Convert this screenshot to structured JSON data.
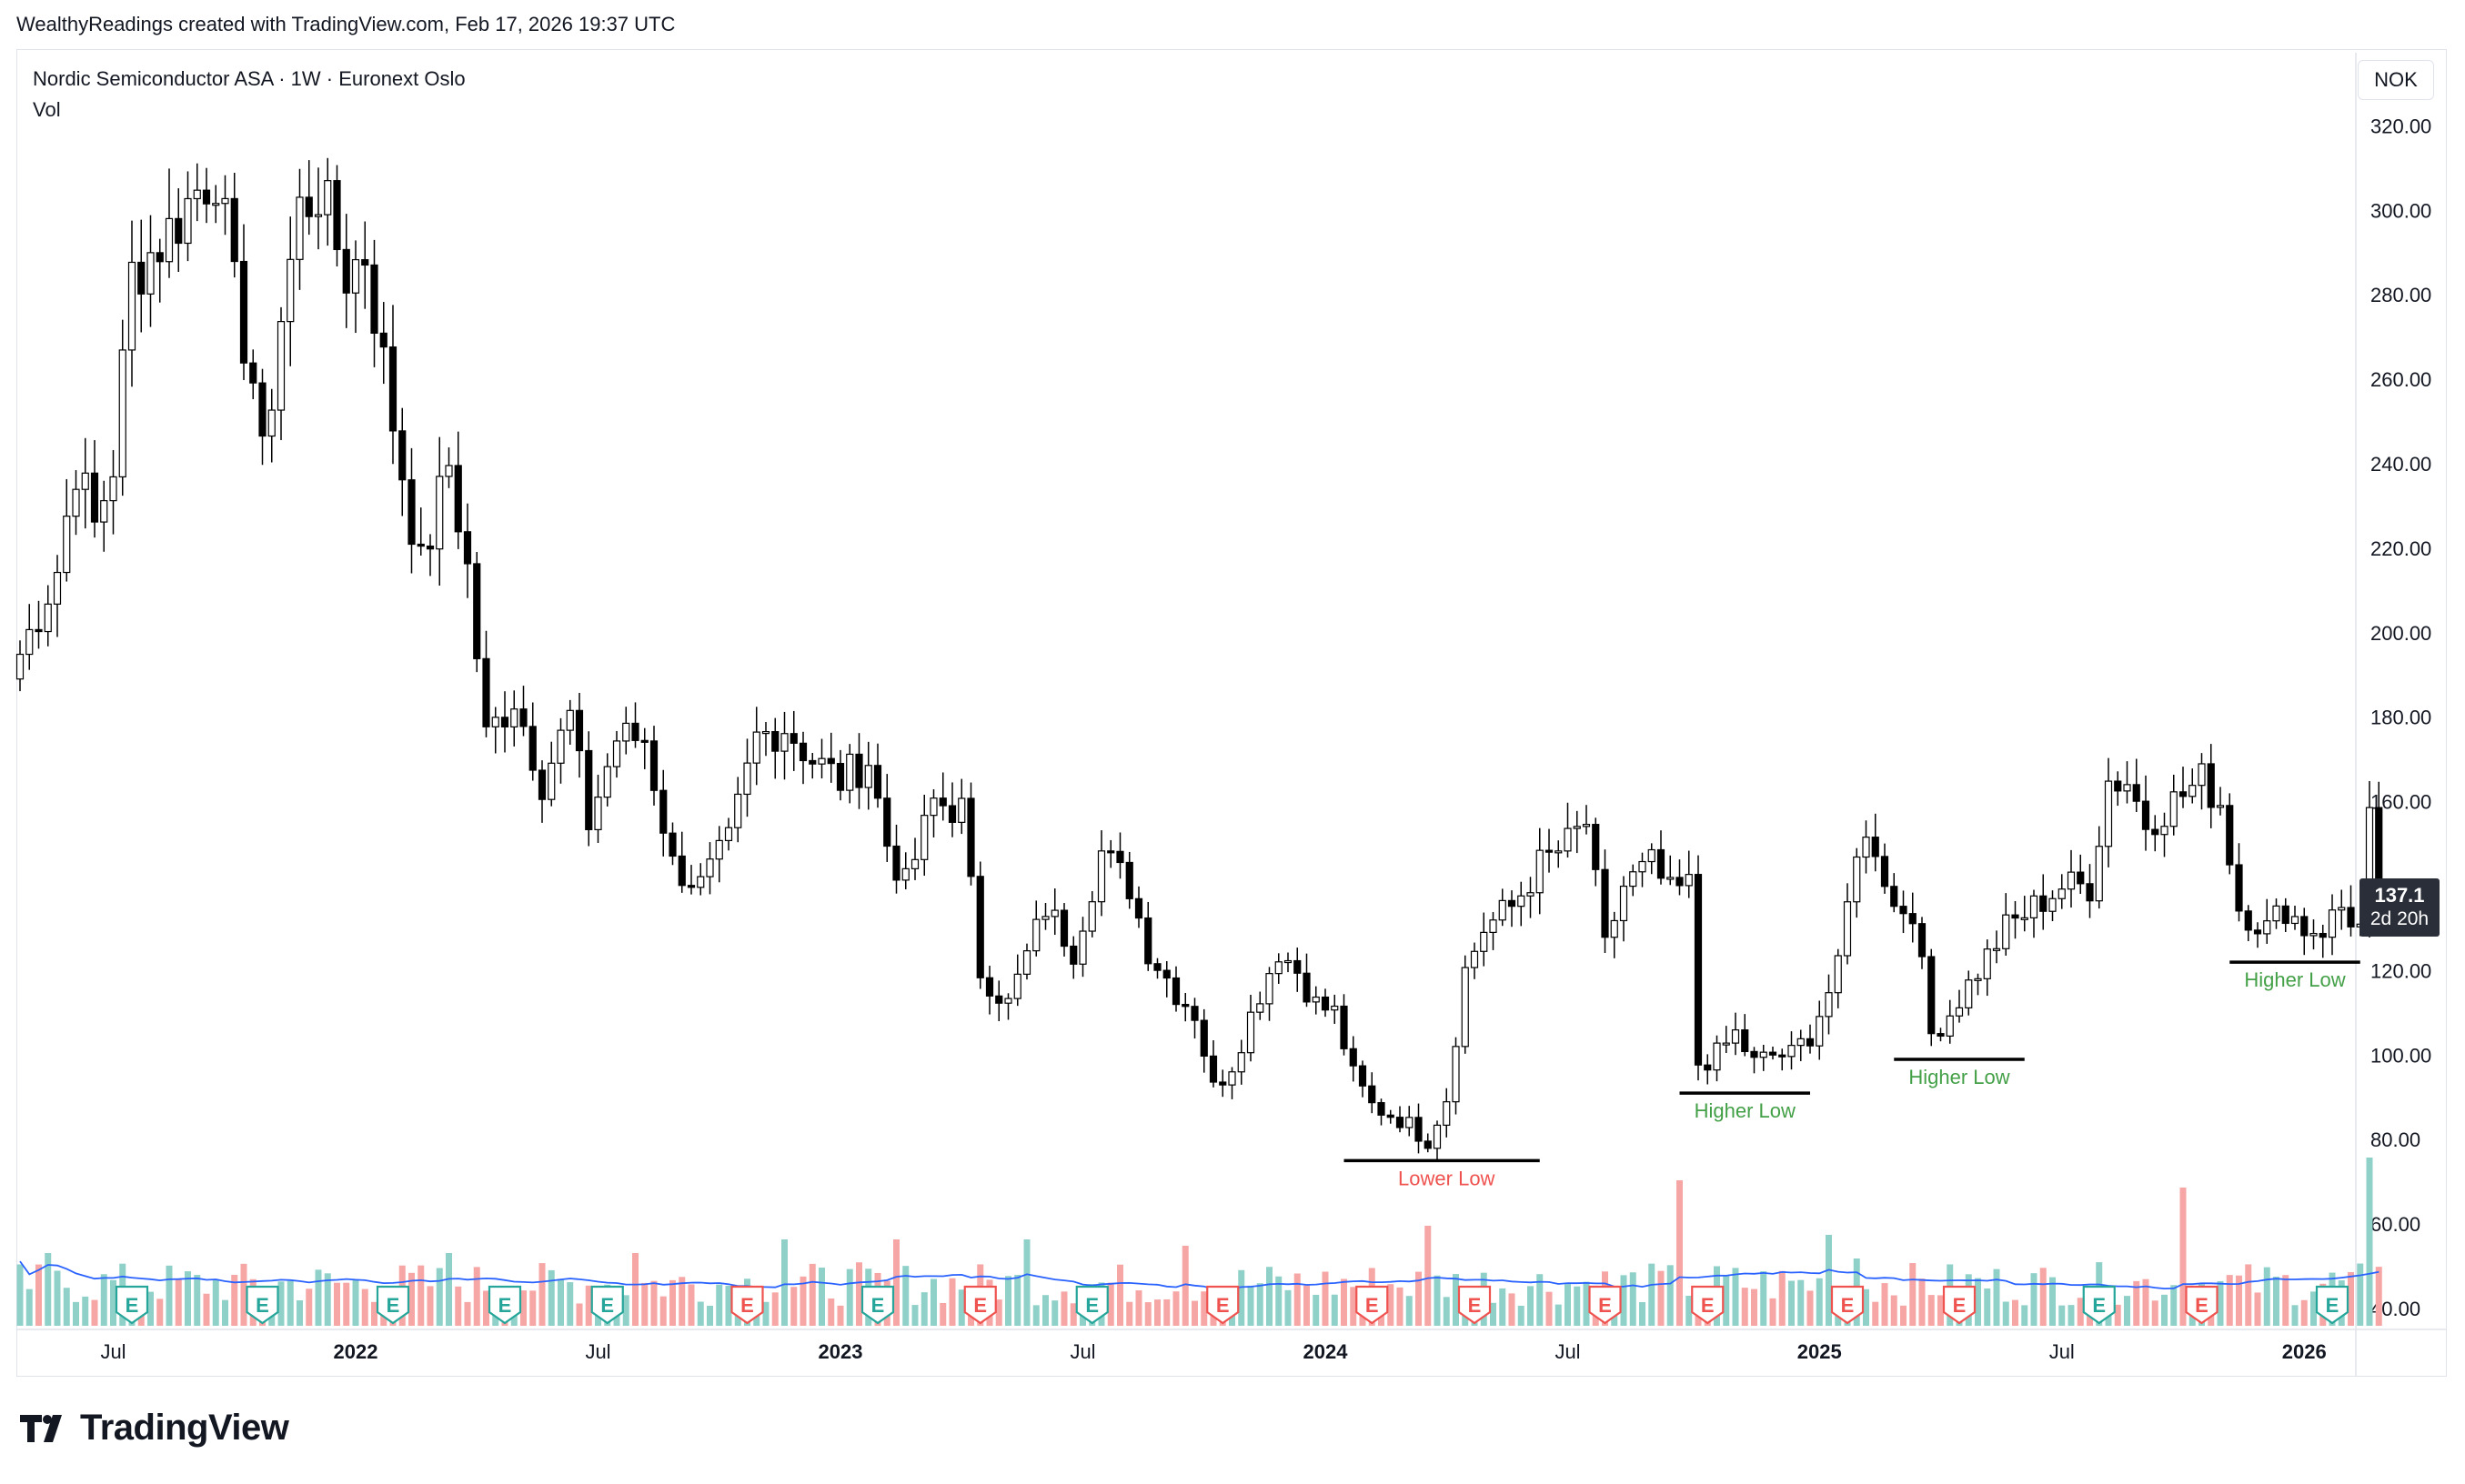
{
  "attribution": "WealthyReadings created with TradingView.com, Feb 17, 2026 19:37 UTC",
  "legend": {
    "symbol_line": "Nordic Semiconductor ASA · 1W · Euronext Oslo",
    "volume_label": "Vol"
  },
  "currency": "NOK",
  "last_price": {
    "value": "137.1",
    "countdown": "2d 20h"
  },
  "logo_text": "TradingView",
  "colors": {
    "up": "#26a69a",
    "down": "#ef5350",
    "up_vol": "#8fd1c8",
    "down_vol": "#f7a6a6",
    "ma": "#2962ff",
    "candle_body_down": "#000000",
    "candle_body_up": "#ffffff"
  },
  "chart_data": {
    "type": "candlestick",
    "interval": "1W",
    "y_axis": {
      "ticks": [
        40,
        60,
        80,
        100,
        120,
        140,
        160,
        180,
        200,
        220,
        240,
        260,
        280,
        300,
        320
      ],
      "range": [
        36,
        330
      ],
      "tick_labels": [
        "40.00",
        "60.00",
        "80.00",
        "100.00",
        "120.00",
        "140.00",
        "160.00",
        "180.00",
        "200.00",
        "220.00",
        "240.00",
        "260.00",
        "280.00",
        "300.00",
        "320.00"
      ]
    },
    "x_axis": {
      "labels": [
        {
          "text": "Jul",
          "weeks": 10,
          "bold": false
        },
        {
          "text": "2022",
          "weeks": 36,
          "bold": true
        },
        {
          "text": "Jul",
          "weeks": 62,
          "bold": false
        },
        {
          "text": "2023",
          "weeks": 88,
          "bold": true
        },
        {
          "text": "Jul",
          "weeks": 114,
          "bold": false
        },
        {
          "text": "2024",
          "weeks": 140,
          "bold": true
        },
        {
          "text": "Jul",
          "weeks": 166,
          "bold": false
        },
        {
          "text": "2025",
          "weeks": 193,
          "bold": true
        },
        {
          "text": "Jul",
          "weeks": 219,
          "bold": false
        },
        {
          "text": "2026",
          "weeks": 245,
          "bold": true
        }
      ]
    },
    "anchors": [
      [
        0,
        195
      ],
      [
        4,
        215
      ],
      [
        6,
        240
      ],
      [
        8,
        225
      ],
      [
        10,
        240
      ],
      [
        12,
        285
      ],
      [
        16,
        295
      ],
      [
        19,
        305
      ],
      [
        21,
        310
      ],
      [
        23,
        280
      ],
      [
        25,
        260
      ],
      [
        26,
        240
      ],
      [
        28,
        275
      ],
      [
        30,
        300
      ],
      [
        32,
        305
      ],
      [
        35,
        285
      ],
      [
        37,
        290
      ],
      [
        40,
        250
      ],
      [
        43,
        215
      ],
      [
        46,
        240
      ],
      [
        48,
        215
      ],
      [
        50,
        175
      ],
      [
        53,
        185
      ],
      [
        56,
        165
      ],
      [
        59,
        180
      ],
      [
        61,
        155
      ],
      [
        64,
        175
      ],
      [
        67,
        175
      ],
      [
        70,
        145
      ],
      [
        73,
        140
      ],
      [
        76,
        150
      ],
      [
        79,
        175
      ],
      [
        82,
        178
      ],
      [
        85,
        170
      ],
      [
        88,
        165
      ],
      [
        91,
        170
      ],
      [
        93,
        150
      ],
      [
        95,
        140
      ],
      [
        98,
        160
      ],
      [
        101,
        158
      ],
      [
        103,
        120
      ],
      [
        106,
        112
      ],
      [
        110,
        135
      ],
      [
        113,
        125
      ],
      [
        116,
        148
      ],
      [
        119,
        140
      ],
      [
        121,
        125
      ],
      [
        124,
        115
      ],
      [
        126,
        110
      ],
      [
        128,
        92
      ],
      [
        130,
        98
      ],
      [
        133,
        115
      ],
      [
        135,
        125
      ],
      [
        137,
        120
      ],
      [
        139,
        112
      ],
      [
        141,
        110
      ],
      [
        143,
        95
      ],
      [
        145,
        88
      ],
      [
        148,
        85
      ],
      [
        151,
        80
      ],
      [
        153,
        90
      ],
      [
        155,
        120
      ],
      [
        157,
        130
      ],
      [
        160,
        135
      ],
      [
        163,
        145
      ],
      [
        166,
        150
      ],
      [
        168,
        155
      ],
      [
        170,
        125
      ],
      [
        172,
        140
      ],
      [
        175,
        145
      ],
      [
        177,
        138
      ],
      [
        179,
        140
      ],
      [
        180,
        98
      ],
      [
        182,
        100
      ],
      [
        184,
        105
      ],
      [
        186,
        98
      ],
      [
        188,
        100
      ],
      [
        190,
        100
      ],
      [
        192,
        105
      ],
      [
        195,
        120
      ],
      [
        197,
        150
      ],
      [
        199,
        150
      ],
      [
        201,
        135
      ],
      [
        203,
        135
      ],
      [
        205,
        105
      ],
      [
        207,
        110
      ],
      [
        210,
        120
      ],
      [
        213,
        130
      ],
      [
        216,
        135
      ],
      [
        219,
        140
      ],
      [
        222,
        140
      ],
      [
        224,
        165
      ],
      [
        226,
        165
      ],
      [
        228,
        155
      ],
      [
        231,
        160
      ],
      [
        234,
        165
      ],
      [
        236,
        160
      ],
      [
        238,
        135
      ],
      [
        241,
        130
      ],
      [
        243,
        135
      ],
      [
        245,
        130
      ],
      [
        247,
        130
      ],
      [
        249,
        135
      ],
      [
        251,
        130
      ],
      [
        252,
        155
      ],
      [
        253,
        137
      ]
    ],
    "volume": {
      "spikes": [
        [
          3,
          80
        ],
        [
          46,
          80
        ],
        [
          66,
          80
        ],
        [
          82,
          95
        ],
        [
          94,
          95
        ],
        [
          108,
          95
        ],
        [
          125,
          88
        ],
        [
          151,
          110
        ],
        [
          178,
          160
        ],
        [
          194,
          100
        ],
        [
          197,
          74
        ],
        [
          232,
          152
        ],
        [
          252,
          185
        ]
      ]
    },
    "earnings_markers": [
      {
        "weeks": 12,
        "kind": "E",
        "color": "green"
      },
      {
        "weeks": 26,
        "kind": "E",
        "color": "green"
      },
      {
        "weeks": 40,
        "kind": "E",
        "color": "green"
      },
      {
        "weeks": 52,
        "kind": "E",
        "color": "green"
      },
      {
        "weeks": 63,
        "kind": "E",
        "color": "green"
      },
      {
        "weeks": 78,
        "kind": "E",
        "color": "red"
      },
      {
        "weeks": 92,
        "kind": "E",
        "color": "green"
      },
      {
        "weeks": 103,
        "kind": "E",
        "color": "red"
      },
      {
        "weeks": 115,
        "kind": "E",
        "color": "green"
      },
      {
        "weeks": 129,
        "kind": "E",
        "color": "red"
      },
      {
        "weeks": 145,
        "kind": "E",
        "color": "red"
      },
      {
        "weeks": 156,
        "kind": "E",
        "color": "red"
      },
      {
        "weeks": 170,
        "kind": "E",
        "color": "red"
      },
      {
        "weeks": 181,
        "kind": "E",
        "color": "red"
      },
      {
        "weeks": 196,
        "kind": "E",
        "color": "red"
      },
      {
        "weeks": 208,
        "kind": "E",
        "color": "red"
      },
      {
        "weeks": 223,
        "kind": "E",
        "color": "green"
      },
      {
        "weeks": 234,
        "kind": "E",
        "color": "red"
      },
      {
        "weeks": 248,
        "kind": "E",
        "color": "green"
      }
    ],
    "annotations": [
      {
        "text": "Lower Low",
        "price": 75,
        "from_weeks": 142,
        "to_weeks": 163,
        "color": "#ef5350",
        "label_weeks": 153
      },
      {
        "text": "Higher Low",
        "price": 91,
        "from_weeks": 178,
        "to_weeks": 192,
        "color": "#43a047",
        "label_weeks": 185
      },
      {
        "text": "Higher Low",
        "price": 99,
        "from_weeks": 201,
        "to_weeks": 215,
        "color": "#43a047",
        "label_weeks": 208
      },
      {
        "text": "Higher Low",
        "price": 122,
        "from_weeks": 237,
        "to_weeks": 251,
        "color": "#43a047",
        "label_weeks": 244
      }
    ]
  }
}
